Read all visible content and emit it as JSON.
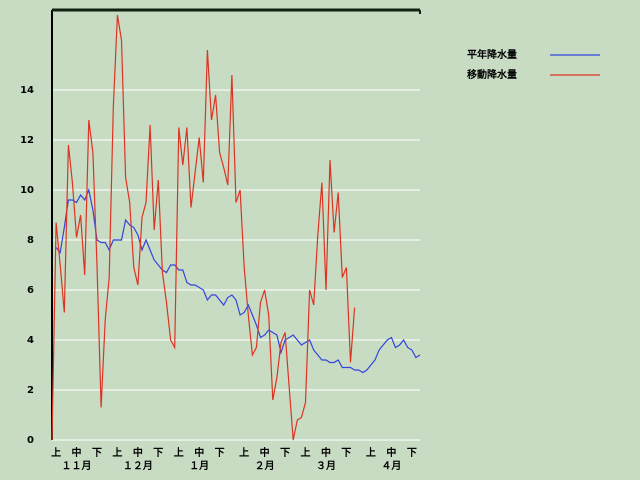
{
  "chart_data": {
    "type": "line",
    "categories": [
      null,
      "上",
      null,
      null,
      null,
      null,
      "中",
      null,
      null,
      null,
      null,
      "下",
      null,
      null,
      null,
      null,
      "上",
      null,
      null,
      null,
      null,
      "中",
      null,
      null,
      null,
      null,
      "下",
      null,
      null,
      null,
      null,
      "上",
      null,
      null,
      null,
      null,
      "中",
      null,
      null,
      null,
      null,
      "下",
      null,
      null,
      null,
      null,
      null,
      "上",
      null,
      null,
      null,
      null,
      "中",
      null,
      null,
      null,
      null,
      "下",
      null,
      null,
      null,
      null,
      "上",
      null,
      null,
      null,
      null,
      "中",
      null,
      null,
      null,
      null,
      "下",
      null,
      null,
      null,
      null,
      null,
      "上",
      null,
      null,
      null,
      null,
      "中",
      null,
      null,
      null,
      null,
      "下",
      null,
      null
    ],
    "month_labels": [
      null,
      null,
      null,
      null,
      null,
      null,
      "１１月",
      null,
      null,
      null,
      null,
      null,
      null,
      null,
      null,
      null,
      null,
      null,
      null,
      null,
      null,
      "１２月",
      null,
      null,
      null,
      null,
      null,
      null,
      null,
      null,
      null,
      null,
      null,
      null,
      null,
      null,
      "１月",
      null,
      null,
      null,
      null,
      null,
      null,
      null,
      null,
      null,
      null,
      null,
      null,
      null,
      null,
      null,
      "２月",
      null,
      null,
      null,
      null,
      null,
      null,
      null,
      null,
      null,
      null,
      null,
      null,
      null,
      null,
      "３月",
      null,
      null,
      null,
      null,
      null,
      null,
      null,
      null,
      null,
      null,
      null,
      null,
      null,
      null,
      null,
      "４月",
      null,
      null,
      null,
      null,
      null,
      null,
      null
    ],
    "series": [
      {
        "name": "平年降水量",
        "color": "#3344dd",
        "values": [
          null,
          7.7,
          7.5,
          8.5,
          9.6,
          9.6,
          9.5,
          9.8,
          9.6,
          10.0,
          9.2,
          8.0,
          7.9,
          7.9,
          7.6,
          8.0,
          8.0,
          8.0,
          8.8,
          8.6,
          8.5,
          8.2,
          7.6,
          8.0,
          7.6,
          7.2,
          7.0,
          6.8,
          6.7,
          7.0,
          7.0,
          6.8,
          6.8,
          6.3,
          6.2,
          6.2,
          6.1,
          6.0,
          5.6,
          5.8,
          5.8,
          5.6,
          5.4,
          5.7,
          5.8,
          5.6,
          5.0,
          5.1,
          5.4,
          5.0,
          4.6,
          4.1,
          4.2,
          4.4,
          4.3,
          4.2,
          3.5,
          4.0,
          4.1,
          4.2,
          4.0,
          3.8,
          3.9,
          4.0,
          3.6,
          3.4,
          3.2,
          3.2,
          3.1,
          3.1,
          3.2,
          2.9,
          2.9,
          2.9,
          2.8,
          2.8,
          2.7,
          2.8,
          3.0,
          3.2,
          3.6,
          3.8,
          4.0,
          4.1,
          3.7,
          3.8,
          4.0,
          3.7,
          3.6,
          3.3,
          3.4
        ]
      },
      {
        "name": "移動降水量",
        "color": "#dd3322",
        "values": [
          0,
          8.7,
          7.0,
          5.1,
          11.8,
          10.3,
          8.1,
          9.0,
          6.6,
          12.8,
          11.5,
          7.0,
          1.3,
          4.8,
          6.5,
          13.3,
          17.0,
          16.0,
          10.5,
          9.5,
          6.9,
          6.2,
          8.9,
          9.5,
          12.6,
          8.4,
          10.4,
          6.7,
          5.5,
          4.0,
          3.7,
          12.5,
          11.0,
          12.5,
          9.3,
          10.7,
          12.1,
          10.3,
          15.6,
          12.8,
          13.8,
          11.5,
          10.9,
          10.2,
          14.6,
          9.5,
          10.0,
          6.9,
          5.0,
          3.4,
          3.7,
          5.5,
          6.0,
          5.0,
          1.6,
          2.5,
          3.9,
          4.3,
          2.1,
          0.0,
          0.8,
          0.9,
          1.5,
          6.0,
          5.4,
          8.2,
          10.3,
          6.0,
          11.2,
          8.3,
          9.9,
          6.5,
          6.9,
          3.1,
          5.3,
          null,
          null,
          null,
          null,
          null,
          null,
          null,
          null,
          null,
          null,
          null,
          null,
          null,
          null,
          null,
          null
        ]
      }
    ],
    "ylim": [
      0,
      17.2
    ],
    "yticks": [
      0,
      2,
      4,
      6,
      8,
      10,
      12,
      14
    ],
    "grid": true
  }
}
